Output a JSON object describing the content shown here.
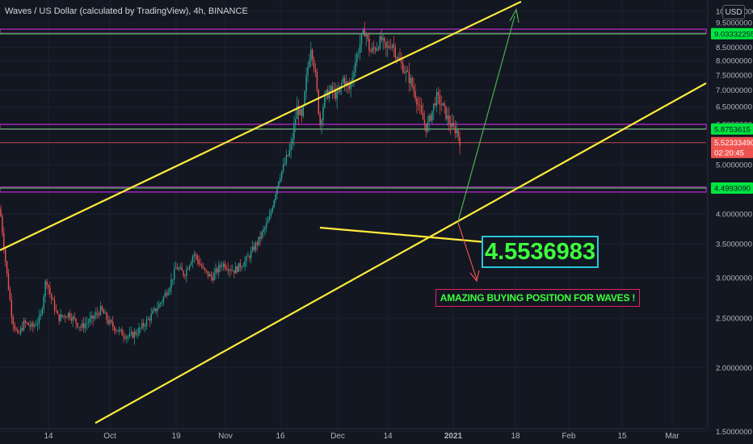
{
  "chart_title": "Waves / US Dollar (calculated by TradingView), 4h, BINANCE",
  "currency_button": "USD",
  "callout_value": "4.5536983",
  "annotation": "AMAZING BUYING POSITION FOR WAVES !",
  "colors": {
    "background": "#131722",
    "up": "#26a69a",
    "down": "#ef5350",
    "channel": "#ffeb3b",
    "level_green": "#4caf50",
    "level_purple": "#9c27b0",
    "arrow_up": "#4caf50",
    "arrow_down": "#ef5350"
  },
  "chart_data": {
    "type": "candlestick",
    "title": "Waves / US Dollar (calculated by TradingView), 4h, BINANCE",
    "interval": "4h",
    "exchange": "BINANCE",
    "y_scale": "log",
    "ylim": [
      1.3,
      11.0
    ],
    "y_ticks": [
      1.5,
      2.0,
      2.5,
      3.0,
      3.5,
      4.0,
      4.5,
      5.0,
      5.5,
      6.0,
      6.5,
      7.0,
      7.5,
      8.0,
      8.5,
      9.0,
      9.5,
      10.0
    ],
    "y_tick_labels": [
      "1.5000000",
      "2.0000000",
      "2.5000000",
      "3.0000000",
      "3.5000000",
      "4.0000000",
      "4.5000000",
      "5.0000000",
      "5.5000000",
      "6.0000000",
      "6.5000000",
      "7.0000000",
      "7.5000000",
      "8.0000000",
      "8.5000000",
      "9.0000000",
      "9.5000000",
      "10.0000000"
    ],
    "x_tick_labels": [
      "14",
      "Oct",
      "19",
      "Nov",
      "16",
      "Dec",
      "14",
      "2021",
      "18",
      "Feb",
      "15",
      "Mar"
    ],
    "price_path": [
      [
        0,
        4.1
      ],
      [
        8,
        3.1
      ],
      [
        15,
        2.5
      ],
      [
        22,
        2.3
      ],
      [
        30,
        2.45
      ],
      [
        40,
        2.4
      ],
      [
        50,
        2.5
      ],
      [
        57,
        3.0
      ],
      [
        63,
        2.75
      ],
      [
        72,
        2.5
      ],
      [
        85,
        2.55
      ],
      [
        100,
        2.4
      ],
      [
        115,
        2.5
      ],
      [
        125,
        2.6
      ],
      [
        135,
        2.45
      ],
      [
        148,
        2.35
      ],
      [
        160,
        2.3
      ],
      [
        170,
        2.35
      ],
      [
        185,
        2.5
      ],
      [
        200,
        2.7
      ],
      [
        210,
        2.9
      ],
      [
        218,
        3.15
      ],
      [
        228,
        3.05
      ],
      [
        240,
        3.35
      ],
      [
        252,
        3.1
      ],
      [
        262,
        3.0
      ],
      [
        275,
        3.2
      ],
      [
        290,
        3.1
      ],
      [
        305,
        3.25
      ],
      [
        320,
        3.55
      ],
      [
        333,
        3.9
      ],
      [
        345,
        4.7
      ],
      [
        352,
        5.0
      ],
      [
        360,
        5.4
      ],
      [
        368,
        6.5
      ],
      [
        374,
        6.1
      ],
      [
        380,
        7.6
      ],
      [
        385,
        8.6
      ],
      [
        390,
        7.6
      ],
      [
        396,
        6.0
      ],
      [
        402,
        6.8
      ],
      [
        410,
        7.0
      ],
      [
        418,
        6.8
      ],
      [
        425,
        7.4
      ],
      [
        432,
        7.0
      ],
      [
        440,
        8.0
      ],
      [
        447,
        8.8
      ],
      [
        452,
        9.2
      ],
      [
        458,
        8.3
      ],
      [
        465,
        8.5
      ],
      [
        472,
        8.8
      ],
      [
        478,
        8.4
      ],
      [
        485,
        8.7
      ],
      [
        492,
        8.1
      ],
      [
        500,
        7.7
      ],
      [
        508,
        7.3
      ],
      [
        515,
        6.8
      ],
      [
        522,
        6.2
      ],
      [
        528,
        5.9
      ],
      [
        534,
        6.3
      ],
      [
        540,
        6.8
      ],
      [
        548,
        6.5
      ],
      [
        555,
        6.1
      ],
      [
        560,
        5.9
      ],
      [
        565,
        5.85
      ],
      [
        570,
        5.52
      ]
    ],
    "horizontal_levels": [
      {
        "label": "9.03332255",
        "price": 9.0333,
        "color": "#4caf50"
      },
      {
        "label": "5.8753615",
        "price": 5.8754,
        "color": "#4caf50"
      },
      {
        "label": "5.52333490",
        "price": 5.5233,
        "color": "#ef5350"
      },
      {
        "label": "02:20:45",
        "price": 5.25,
        "color": "#ef5350"
      },
      {
        "label": "4.4993090",
        "price": 4.4993,
        "color": "#4caf50"
      }
    ],
    "zones": [
      {
        "from": 9.05,
        "to": 9.22,
        "color": "#9c27b0"
      },
      {
        "from": 5.87,
        "to": 6.0,
        "color": "#9c27b0"
      },
      {
        "from": 4.42,
        "to": 4.52,
        "color": "#9c27b0"
      }
    ],
    "legend": "none",
    "grid": true
  }
}
